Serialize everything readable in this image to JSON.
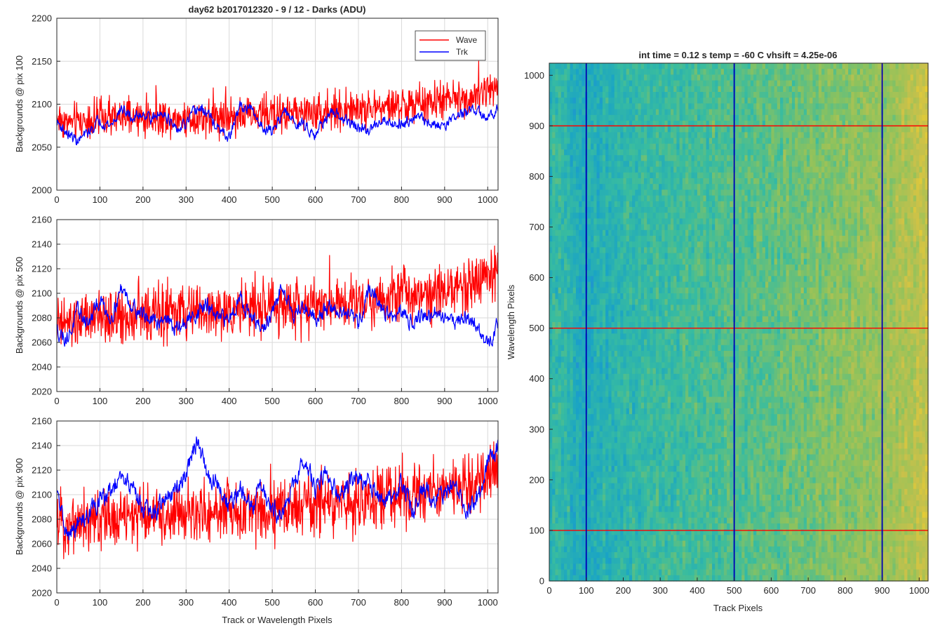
{
  "colors": {
    "wave": "#ff0000",
    "trk": "#0000ff",
    "grid": "#d9d9d9",
    "axis": "#262626"
  },
  "chart_data": [
    {
      "type": "line",
      "title": "day62 b2017012320 - 9 / 12 - Darks (ADU)",
      "xlabel": "",
      "ylabel": "Backgrounds @ pix 100",
      "xlim": [
        0,
        1024
      ],
      "ylim": [
        2000,
        2200
      ],
      "xticks": [
        "0",
        "100",
        "200",
        "300",
        "400",
        "500",
        "600",
        "700",
        "800",
        "900",
        "1000"
      ],
      "yticks": [
        "2000",
        "2050",
        "2100",
        "2150",
        "2200"
      ],
      "grid": true,
      "legend": {
        "placement": "top-right",
        "entries": [
          "Wave",
          "Trk"
        ]
      },
      "series": [
        {
          "name": "Wave",
          "color": "#ff0000",
          "x": [
            0,
            25,
            50,
            75,
            100,
            125,
            150,
            175,
            200,
            225,
            250,
            275,
            300,
            325,
            350,
            375,
            400,
            425,
            450,
            475,
            500,
            525,
            550,
            575,
            600,
            625,
            650,
            675,
            700,
            725,
            750,
            775,
            800,
            825,
            850,
            875,
            900,
            925,
            950,
            975,
            1000,
            1024
          ],
          "y": [
            2085,
            2078,
            2080,
            2082,
            2083,
            2083,
            2084,
            2084,
            2084,
            2085,
            2085,
            2084,
            2084,
            2085,
            2086,
            2086,
            2086,
            2087,
            2087,
            2088,
            2089,
            2089,
            2090,
            2090,
            2091,
            2091,
            2092,
            2093,
            2094,
            2095,
            2096,
            2097,
            2098,
            2099,
            2100,
            2102,
            2104,
            2106,
            2108,
            2111,
            2115,
            2128
          ],
          "noise": 12
        },
        {
          "name": "Trk",
          "color": "#0000ff",
          "x": [
            0,
            25,
            50,
            75,
            100,
            125,
            150,
            175,
            200,
            225,
            250,
            275,
            300,
            325,
            350,
            375,
            400,
            425,
            450,
            475,
            500,
            525,
            550,
            575,
            600,
            625,
            650,
            675,
            700,
            725,
            750,
            775,
            800,
            825,
            850,
            875,
            900,
            925,
            950,
            975,
            1000,
            1024
          ],
          "y": [
            2080,
            2065,
            2057,
            2068,
            2082,
            2075,
            2095,
            2083,
            2090,
            2083,
            2092,
            2068,
            2076,
            2095,
            2090,
            2070,
            2060,
            2098,
            2093,
            2075,
            2068,
            2092,
            2080,
            2075,
            2066,
            2085,
            2087,
            2080,
            2072,
            2068,
            2083,
            2079,
            2077,
            2086,
            2082,
            2075,
            2077,
            2086,
            2090,
            2093,
            2080,
            2100
          ],
          "noise": 5
        }
      ]
    },
    {
      "type": "line",
      "title": "",
      "xlabel": "",
      "ylabel": "Backgrounds @ pix 500",
      "xlim": [
        0,
        1024
      ],
      "ylim": [
        2020,
        2160
      ],
      "xticks": [
        "0",
        "100",
        "200",
        "300",
        "400",
        "500",
        "600",
        "700",
        "800",
        "900",
        "1000"
      ],
      "yticks": [
        "2020",
        "2040",
        "2060",
        "2080",
        "2100",
        "2120",
        "2140",
        "2160"
      ],
      "grid": true,
      "series": [
        {
          "name": "Wave",
          "color": "#ff0000",
          "x": [
            0,
            25,
            50,
            75,
            100,
            125,
            150,
            175,
            200,
            225,
            250,
            275,
            300,
            325,
            350,
            375,
            400,
            425,
            450,
            475,
            500,
            525,
            550,
            575,
            600,
            625,
            650,
            675,
            700,
            725,
            750,
            775,
            800,
            825,
            850,
            875,
            900,
            925,
            950,
            975,
            1000,
            1024
          ],
          "y": [
            2075,
            2074,
            2076,
            2078,
            2079,
            2080,
            2081,
            2082,
            2082,
            2083,
            2083,
            2083,
            2084,
            2084,
            2085,
            2085,
            2086,
            2086,
            2087,
            2087,
            2088,
            2089,
            2090,
            2090,
            2091,
            2092,
            2093,
            2094,
            2095,
            2096,
            2097,
            2098,
            2099,
            2100,
            2101,
            2103,
            2104,
            2105,
            2107,
            2110,
            2115,
            2118
          ],
          "noise": 12
        },
        {
          "name": "Trk",
          "color": "#0000ff",
          "x": [
            0,
            25,
            50,
            75,
            100,
            125,
            150,
            175,
            200,
            225,
            250,
            275,
            300,
            325,
            350,
            375,
            400,
            425,
            450,
            475,
            500,
            525,
            550,
            575,
            600,
            625,
            650,
            675,
            700,
            725,
            750,
            775,
            800,
            825,
            850,
            875,
            900,
            925,
            950,
            975,
            1000,
            1024
          ],
          "y": [
            2070,
            2063,
            2085,
            2075,
            2095,
            2080,
            2105,
            2090,
            2084,
            2075,
            2082,
            2070,
            2076,
            2085,
            2090,
            2078,
            2080,
            2098,
            2080,
            2070,
            2082,
            2108,
            2082,
            2090,
            2080,
            2088,
            2086,
            2082,
            2075,
            2105,
            2090,
            2080,
            2083,
            2078,
            2082,
            2081,
            2082,
            2078,
            2080,
            2074,
            2055,
            2078
          ],
          "noise": 5
        }
      ]
    },
    {
      "type": "line",
      "title": "",
      "xlabel": "Track or Wavelength Pixels",
      "ylabel": "Backgrounds @ pix 900",
      "xlim": [
        0,
        1024
      ],
      "ylim": [
        2020,
        2160
      ],
      "xticks": [
        "0",
        "100",
        "200",
        "300",
        "400",
        "500",
        "600",
        "700",
        "800",
        "900",
        "1000"
      ],
      "yticks": [
        "2020",
        "2040",
        "2060",
        "2080",
        "2100",
        "2120",
        "2140",
        "2160"
      ],
      "grid": true,
      "series": [
        {
          "name": "Wave",
          "color": "#ff0000",
          "x": [
            0,
            25,
            50,
            75,
            100,
            125,
            150,
            175,
            200,
            225,
            250,
            275,
            300,
            325,
            350,
            375,
            400,
            425,
            450,
            475,
            500,
            525,
            550,
            575,
            600,
            625,
            650,
            675,
            700,
            725,
            750,
            775,
            800,
            825,
            850,
            875,
            900,
            925,
            950,
            975,
            1000,
            1024
          ],
          "y": [
            2078,
            2076,
            2078,
            2079,
            2080,
            2081,
            2082,
            2082,
            2083,
            2083,
            2083,
            2084,
            2084,
            2085,
            2085,
            2086,
            2086,
            2087,
            2087,
            2088,
            2088,
            2089,
            2090,
            2090,
            2091,
            2092,
            2093,
            2094,
            2095,
            2096,
            2097,
            2098,
            2099,
            2100,
            2101,
            2102,
            2104,
            2105,
            2107,
            2110,
            2114,
            2120
          ],
          "noise": 13
        },
        {
          "name": "Trk",
          "color": "#0000ff",
          "x": [
            0,
            25,
            50,
            75,
            100,
            125,
            150,
            175,
            200,
            225,
            250,
            275,
            300,
            325,
            350,
            375,
            400,
            425,
            450,
            475,
            500,
            525,
            550,
            575,
            600,
            625,
            650,
            675,
            700,
            725,
            750,
            775,
            800,
            825,
            850,
            875,
            900,
            925,
            950,
            975,
            1000,
            1024
          ],
          "y": [
            2100,
            2065,
            2075,
            2085,
            2095,
            2102,
            2112,
            2108,
            2090,
            2083,
            2098,
            2100,
            2120,
            2143,
            2115,
            2108,
            2090,
            2104,
            2088,
            2110,
            2088,
            2085,
            2108,
            2128,
            2105,
            2122,
            2100,
            2108,
            2112,
            2112,
            2098,
            2095,
            2110,
            2088,
            2105,
            2098,
            2100,
            2110,
            2090,
            2095,
            2125,
            2140
          ],
          "noise": 6
        }
      ]
    },
    {
      "type": "heatmap",
      "title": "int time = 0.12 s    temp = -60 C    vhsift = 4.25e-06",
      "xlabel": "Track Pixels",
      "ylabel": "Wavelength Pixels",
      "xlim": [
        0,
        1024
      ],
      "ylim": [
        0,
        1024
      ],
      "xticks": [
        "0",
        "100",
        "200",
        "300",
        "400",
        "500",
        "600",
        "700",
        "800",
        "900",
        "1000"
      ],
      "yticks": [
        "0",
        "100",
        "200",
        "300",
        "400",
        "500",
        "600",
        "700",
        "800",
        "900",
        "1000"
      ],
      "columns": 128,
      "column_level": [
        0.42,
        0.47,
        0.48,
        0.47,
        0.46,
        0.46,
        0.44,
        0.42,
        0.4,
        0.39,
        0.38,
        0.38,
        0.38,
        0.39,
        0.4,
        0.4,
        0.41,
        0.41,
        0.42,
        0.42,
        0.43,
        0.43,
        0.44,
        0.44,
        0.45,
        0.45,
        0.46,
        0.46,
        0.47,
        0.47,
        0.47,
        0.48,
        0.48,
        0.48,
        0.48,
        0.49,
        0.49,
        0.49,
        0.49,
        0.5,
        0.5,
        0.5,
        0.5,
        0.5,
        0.51,
        0.51,
        0.51,
        0.51,
        0.51,
        0.52,
        0.52,
        0.52,
        0.52,
        0.52,
        0.53,
        0.53,
        0.53,
        0.53,
        0.53,
        0.54,
        0.54,
        0.54,
        0.54,
        0.54,
        0.55,
        0.55,
        0.55,
        0.55,
        0.56,
        0.56,
        0.56,
        0.56,
        0.57,
        0.57,
        0.57,
        0.58,
        0.58,
        0.58,
        0.59,
        0.59,
        0.59,
        0.6,
        0.6,
        0.6,
        0.61,
        0.61,
        0.61,
        0.62,
        0.62,
        0.62,
        0.63,
        0.63,
        0.63,
        0.64,
        0.64,
        0.64,
        0.65,
        0.65,
        0.65,
        0.66,
        0.66,
        0.66,
        0.67,
        0.67,
        0.67,
        0.68,
        0.68,
        0.68,
        0.69,
        0.69,
        0.69,
        0.7,
        0.7,
        0.7,
        0.71,
        0.71,
        0.72,
        0.73,
        0.74,
        0.75,
        0.76,
        0.77,
        0.78,
        0.79,
        0.8,
        0.81,
        0.82,
        0.83
      ],
      "colormap": [
        "#3e26a8",
        "#2f7ce0",
        "#19a3c6",
        "#38bca0",
        "#8dc25d",
        "#c9c14a",
        "#f9d326"
      ],
      "cuts": {
        "rows": [
          100,
          500,
          900
        ],
        "row_color": "#ff0000",
        "columns": [
          100,
          500,
          900
        ],
        "column_color": "#0000b4"
      }
    }
  ]
}
